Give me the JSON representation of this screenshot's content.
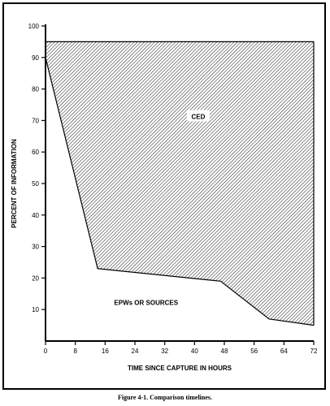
{
  "chart_data": {
    "type": "area",
    "xlabel": "TIME SINCE CAPTURE IN HOURS",
    "ylabel": "PERCENT OF INFORMATION",
    "xlim": [
      0,
      72
    ],
    "ylim": [
      0,
      100
    ],
    "xticks": [
      0,
      8,
      16,
      24,
      32,
      40,
      48,
      56,
      64,
      72
    ],
    "yticks": [
      10,
      20,
      30,
      40,
      50,
      60,
      70,
      80,
      90,
      100
    ],
    "grid": false,
    "series": [
      {
        "name": "CED",
        "fill": "hatched",
        "x": [
          0,
          72
        ],
        "y": [
          95,
          95
        ]
      },
      {
        "name": "EPWs OR SOURCES",
        "fill": "white",
        "x": [
          0,
          14,
          47,
          60,
          72
        ],
        "y": [
          90,
          23,
          19,
          7,
          5
        ]
      }
    ],
    "annotations": [
      {
        "text": "CED",
        "x": 41,
        "y": 71
      },
      {
        "text": "EPWs OR SOURCES",
        "x": 27,
        "y": 12
      }
    ]
  },
  "caption": "Figure 4-1.  Comparison timelines."
}
